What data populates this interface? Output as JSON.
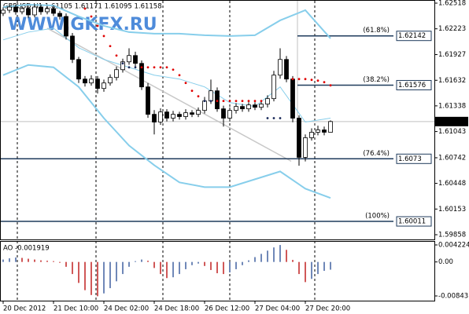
{
  "chart_data": {
    "type": "candlestick",
    "title": "GBPUSD,H1  1.61105 1.61171 1.61095 1.61158",
    "watermark": "WWW.GKFX.RU",
    "ylim": [
      1.59804,
      1.62545
    ],
    "yticks": [
      1.62518,
      1.62223,
      1.61927,
      1.61632,
      1.61338,
      1.61043,
      1.60742,
      1.60448,
      1.60153,
      1.59858
    ],
    "candles": {
      "open": [
        1.62401,
        1.62437,
        1.62473,
        1.62419,
        1.62455,
        1.62383,
        1.62473,
        1.62419,
        1.62455,
        1.62401,
        1.62365,
        1.6214,
        1.61871,
        1.61646,
        1.61601,
        1.61646,
        1.61538,
        1.61601,
        1.61664,
        1.61754,
        1.61844,
        1.61916,
        1.61826,
        1.61556,
        1.61241,
        1.61152,
        1.61268,
        1.61197,
        1.61241,
        1.61215,
        1.61259,
        1.61241,
        1.61286,
        1.61394,
        1.61511,
        1.61304,
        1.61197,
        1.61286,
        1.61331,
        1.61304,
        1.61349,
        1.61322,
        1.61358,
        1.61421,
        1.61691,
        1.61871,
        1.61646,
        1.61197,
        1.60747,
        1.60972,
        1.61035,
        1.61062,
        1.61035
      ],
      "high": [
        1.6247,
        1.62505,
        1.625,
        1.62485,
        1.6249,
        1.62505,
        1.625,
        1.62485,
        1.6249,
        1.6243,
        1.624,
        1.62175,
        1.619,
        1.6168,
        1.6169,
        1.6168,
        1.6164,
        1.617,
        1.6179,
        1.6188,
        1.62,
        1.6196,
        1.6186,
        1.616,
        1.6129,
        1.6131,
        1.613,
        1.6128,
        1.6127,
        1.613,
        1.6129,
        1.6132,
        1.6144,
        1.6164,
        1.6155,
        1.6134,
        1.6132,
        1.6137,
        1.6136,
        1.6138,
        1.6138,
        1.6139,
        1.6146,
        1.6174,
        1.62,
        1.6191,
        1.6168,
        1.6123,
        1.6101,
        1.6108,
        1.6111,
        1.611,
        1.61171
      ],
      "low": [
        1.6237,
        1.62405,
        1.62385,
        1.6239,
        1.6235,
        1.62355,
        1.62385,
        1.6239,
        1.6237,
        1.6233,
        1.621,
        1.6183,
        1.616,
        1.6156,
        1.6157,
        1.6148,
        1.615,
        1.6157,
        1.6163,
        1.6172,
        1.6181,
        1.6179,
        1.6152,
        1.612,
        1.6101,
        1.6112,
        1.6116,
        1.6116,
        1.6118,
        1.6118,
        1.6121,
        1.6121,
        1.6125,
        1.6136,
        1.6127,
        1.611,
        1.6116,
        1.6125,
        1.6127,
        1.6127,
        1.6129,
        1.6129,
        1.6132,
        1.6139,
        1.6165,
        1.6161,
        1.6115,
        1.6065,
        1.607,
        1.6094,
        1.61,
        1.61,
        1.61095
      ],
      "close": [
        1.62437,
        1.62473,
        1.62419,
        1.62455,
        1.62383,
        1.62473,
        1.62419,
        1.62455,
        1.62401,
        1.62365,
        1.6214,
        1.61871,
        1.61646,
        1.61601,
        1.61646,
        1.61538,
        1.61601,
        1.61664,
        1.61754,
        1.61844,
        1.61916,
        1.61826,
        1.61556,
        1.61241,
        1.61152,
        1.61268,
        1.61197,
        1.61241,
        1.61215,
        1.61259,
        1.61241,
        1.61286,
        1.61394,
        1.61511,
        1.61304,
        1.61197,
        1.61286,
        1.61331,
        1.61304,
        1.61349,
        1.61322,
        1.61358,
        1.61421,
        1.61691,
        1.61871,
        1.61646,
        1.61197,
        1.60747,
        1.60972,
        1.61035,
        1.61062,
        1.61035,
        1.61158
      ]
    },
    "bands": {
      "color": "#87ceeb",
      "x": [
        0,
        4,
        8,
        12,
        16,
        20,
        24,
        28,
        32,
        36,
        40,
        44,
        48,
        52
      ],
      "upper": [
        1.62473,
        1.625,
        1.62491,
        1.62365,
        1.62257,
        1.62185,
        1.62167,
        1.62167,
        1.62149,
        1.6214,
        1.62149,
        1.6232,
        1.62437,
        1.62113
      ],
      "middle": [
        1.62096,
        1.62185,
        1.6223,
        1.62006,
        1.61871,
        1.61781,
        1.61691,
        1.61646,
        1.61556,
        1.61376,
        1.61331,
        1.61556,
        1.61152,
        1.61197
      ],
      "lower": [
        1.61691,
        1.61808,
        1.61781,
        1.61556,
        1.61197,
        1.60882,
        1.60657,
        1.60459,
        1.60405,
        1.60405,
        1.60495,
        1.60585,
        1.60387,
        1.6028
      ]
    },
    "sar": {
      "colors": {
        "above": "#e00000",
        "below": "#1a2a5a"
      },
      "values": [
        null,
        null,
        null,
        null,
        null,
        null,
        null,
        null,
        null,
        null,
        null,
        null,
        null,
        1.62455,
        1.62365,
        1.62257,
        1.6214,
        1.62024,
        1.61916,
        1.61826,
        1.61781,
        1.61781,
        1.61781,
        1.61781,
        1.61781,
        1.61781,
        1.61781,
        1.61754,
        1.61691,
        1.61601,
        1.61511,
        1.61448,
        1.61394,
        1.61394,
        1.61394,
        1.61394,
        1.61394,
        1.61394,
        1.61394,
        1.61394,
        1.61394,
        1.61394,
        1.61197,
        1.61197,
        1.61197,
        null,
        1.61646,
        1.61646,
        1.61646,
        1.61637,
        1.61628,
        1.6161,
        1.61574
      ]
    },
    "trendline": {
      "from": [
        7,
        1.6223
      ],
      "to": [
        45.75,
        1.60702
      ],
      "color": "#c8c8c8"
    },
    "levels": [
      {
        "value": 1.62142,
        "label": "(61.8%)"
      },
      {
        "value": 1.61576,
        "label": "(38.2%)"
      },
      {
        "value": 1.6073,
        "label": "(76.4%)"
      },
      {
        "value": 1.60011,
        "label": "(100%)"
      }
    ],
    "level_color": "#1f3b5c",
    "current_price": 1.61158,
    "time_labels": [
      {
        "index": 0,
        "label": "20 Dec 2012"
      },
      {
        "index": 8,
        "label": "21 Dec 10:00"
      },
      {
        "index": 16,
        "label": "24 Dec 02:00"
      },
      {
        "index": 24,
        "label": "24 Dec 18:00"
      },
      {
        "index": 32,
        "label": "26 Dec 12:00"
      },
      {
        "index": 40,
        "label": "27 Dec 04:00"
      },
      {
        "index": 48,
        "label": "27 Dec 20:00"
      }
    ],
    "ao": {
      "label": "AO -0.001919",
      "colors": {
        "up": "#4060a0",
        "down": "#c02020"
      },
      "ylim": [
        -0.0096,
        0.005
      ],
      "yticks": [
        0.004224,
        {
          "value": 0,
          "label": "0.00"
        },
        -0.00843
      ],
      "values": [
        0.0006,
        0.0009,
        0.0011,
        0.001,
        0.0008,
        0.0006,
        0.0004,
        0.0003,
        0.0002,
        -0.0002,
        -0.0012,
        -0.003,
        -0.0052,
        -0.007,
        -0.0082,
        -0.0085,
        -0.0078,
        -0.0065,
        -0.0048,
        -0.003,
        -0.0012,
        0.0002,
        0.0006,
        0.0003,
        -0.0015,
        -0.003,
        -0.004,
        -0.0038,
        -0.003,
        -0.0018,
        -0.0008,
        -0.0004,
        -0.001,
        -0.002,
        -0.0028,
        -0.003,
        -0.0026,
        -0.0018,
        -0.0008,
        0.0004,
        0.0012,
        0.002,
        0.0028,
        0.0036,
        0.0042,
        0.003,
        0.0005,
        -0.003,
        -0.005,
        -0.0042,
        -0.003,
        -0.0022,
        -0.001919
      ]
    }
  }
}
